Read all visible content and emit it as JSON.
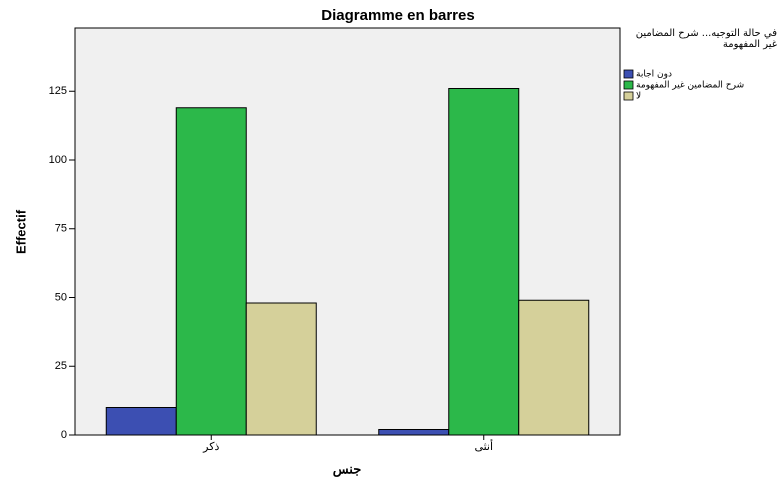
{
  "chart_data": {
    "type": "bar",
    "title": "Diagramme en barres",
    "categories": [
      "ذكر",
      "أنثى"
    ],
    "series": [
      {
        "name": "دون اجابة",
        "color": "#3c4fb2",
        "values": [
          10,
          2
        ]
      },
      {
        "name": "شرح المضامين غير المفهومة",
        "color": "#2cb84a",
        "values": [
          119,
          126
        ]
      },
      {
        "name": "لا",
        "color": "#d5d09a",
        "values": [
          48,
          49
        ]
      }
    ],
    "legend_title": "في حالة التوجيه... شرح المضامين غير المفهومة",
    "x_label": "جنس",
    "y_label": "Effectif",
    "ylim": [
      0,
      148
    ],
    "yticks": [
      0,
      25,
      50,
      75,
      100,
      125
    ],
    "legend": "right"
  }
}
